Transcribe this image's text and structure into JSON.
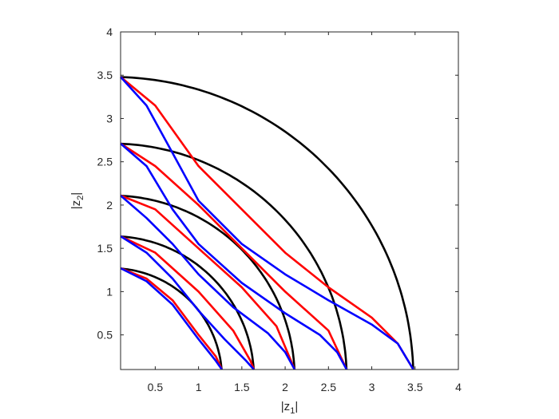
{
  "chart_data": {
    "type": "line",
    "title": "",
    "xlabel": {
      "text": "|z",
      "sub": "1",
      "close": "|"
    },
    "ylabel": {
      "text": "|z",
      "sub": "2",
      "close": "|"
    },
    "xlim": [
      0.1,
      4.0
    ],
    "ylim": [
      0.1,
      4.0
    ],
    "xticks": [
      0.5,
      1,
      1.5,
      2,
      2.5,
      3,
      3.5,
      4
    ],
    "xtick_labels": [
      "0.5",
      "1",
      "1.5",
      "2",
      "2.5",
      "3",
      "3.5",
      "4"
    ],
    "yticks": [
      0.5,
      1,
      1.5,
      2,
      2.5,
      3,
      3.5,
      4
    ],
    "ytick_labels": [
      "0.5",
      "1",
      "1.5",
      "2",
      "2.5",
      "3",
      "3.5",
      "4"
    ],
    "grid": false,
    "colors": {
      "black": "#000000",
      "red": "#ff0000",
      "blue": "#0000ff",
      "axis": "#262626"
    },
    "series": [
      {
        "color": "black",
        "radius": 1.27
      },
      {
        "color": "black",
        "radius": 1.64
      },
      {
        "color": "black",
        "radius": 2.11
      },
      {
        "color": "black",
        "radius": 2.71
      },
      {
        "color": "black",
        "radius": 3.48
      },
      {
        "color": "red",
        "points": [
          [
            0.1,
            1.27
          ],
          [
            0.4,
            1.15
          ],
          [
            0.7,
            0.9
          ],
          [
            1.0,
            0.5
          ],
          [
            1.2,
            0.25
          ],
          [
            1.27,
            0.1
          ]
        ]
      },
      {
        "color": "red",
        "points": [
          [
            0.1,
            1.64
          ],
          [
            0.5,
            1.45
          ],
          [
            1.0,
            1.0
          ],
          [
            1.4,
            0.55
          ],
          [
            1.6,
            0.2
          ],
          [
            1.64,
            0.1
          ]
        ]
      },
      {
        "color": "red",
        "points": [
          [
            0.1,
            2.11
          ],
          [
            0.5,
            1.95
          ],
          [
            1.0,
            1.5
          ],
          [
            1.5,
            1.05
          ],
          [
            1.9,
            0.6
          ],
          [
            2.11,
            0.1
          ]
        ]
      },
      {
        "color": "red",
        "points": [
          [
            0.1,
            2.71
          ],
          [
            0.5,
            2.45
          ],
          [
            1.0,
            2.0
          ],
          [
            1.5,
            1.5
          ],
          [
            2.0,
            1.0
          ],
          [
            2.5,
            0.55
          ],
          [
            2.71,
            0.1
          ]
        ]
      },
      {
        "color": "red",
        "points": [
          [
            0.1,
            3.48
          ],
          [
            0.5,
            3.15
          ],
          [
            1.0,
            2.45
          ],
          [
            1.5,
            1.95
          ],
          [
            2.0,
            1.45
          ],
          [
            2.5,
            1.05
          ],
          [
            3.0,
            0.7
          ],
          [
            3.3,
            0.4
          ],
          [
            3.48,
            0.1
          ]
        ]
      },
      {
        "color": "blue",
        "points": [
          [
            0.1,
            1.27
          ],
          [
            0.4,
            1.12
          ],
          [
            0.7,
            0.85
          ],
          [
            1.0,
            0.45
          ],
          [
            1.2,
            0.2
          ],
          [
            1.27,
            0.1
          ]
        ]
      },
      {
        "color": "blue",
        "points": [
          [
            0.1,
            1.64
          ],
          [
            0.4,
            1.45
          ],
          [
            0.7,
            1.15
          ],
          [
            1.0,
            0.78
          ],
          [
            1.3,
            0.45
          ],
          [
            1.55,
            0.2
          ],
          [
            1.64,
            0.1
          ]
        ]
      },
      {
        "color": "blue",
        "points": [
          [
            0.1,
            2.11
          ],
          [
            0.4,
            1.85
          ],
          [
            0.7,
            1.55
          ],
          [
            1.0,
            1.2
          ],
          [
            1.4,
            0.82
          ],
          [
            1.8,
            0.52
          ],
          [
            2.0,
            0.3
          ],
          [
            2.11,
            0.1
          ]
        ]
      },
      {
        "color": "blue",
        "points": [
          [
            0.1,
            2.71
          ],
          [
            0.4,
            2.45
          ],
          [
            0.7,
            1.95
          ],
          [
            1.0,
            1.55
          ],
          [
            1.5,
            1.1
          ],
          [
            2.0,
            0.75
          ],
          [
            2.4,
            0.5
          ],
          [
            2.6,
            0.3
          ],
          [
            2.71,
            0.1
          ]
        ]
      },
      {
        "color": "blue",
        "points": [
          [
            0.1,
            3.48
          ],
          [
            0.4,
            3.15
          ],
          [
            0.7,
            2.6
          ],
          [
            1.0,
            2.05
          ],
          [
            1.5,
            1.55
          ],
          [
            2.0,
            1.2
          ],
          [
            2.5,
            0.9
          ],
          [
            3.0,
            0.62
          ],
          [
            3.3,
            0.4
          ],
          [
            3.48,
            0.1
          ]
        ]
      }
    ]
  }
}
